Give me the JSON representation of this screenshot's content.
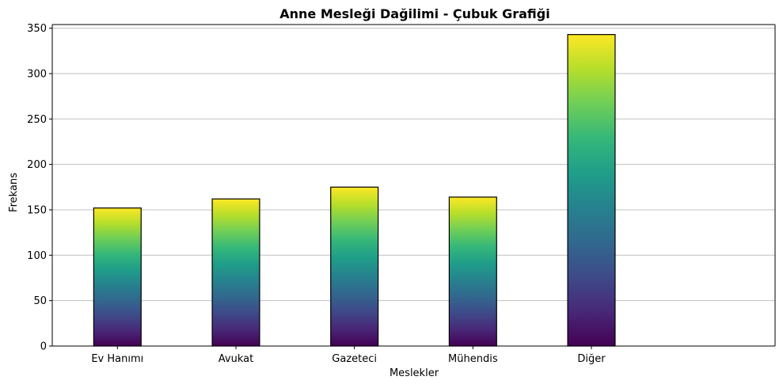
{
  "chart_data": {
    "type": "bar",
    "title": "Anne Mesleği Dağilimi - Çubuk Grafiği",
    "xlabel": "Meslekler",
    "ylabel": "Frekans",
    "categories": [
      "Ev Hanımı",
      "Avukat",
      "Gazeteci",
      "Mühendis",
      "Diğer"
    ],
    "values": [
      152,
      162,
      175,
      164,
      343
    ],
    "ylim": [
      0,
      354
    ],
    "yticks": [
      0,
      50,
      100,
      150,
      200,
      250,
      300,
      350
    ],
    "grid": "horizontal",
    "bar_gradient": [
      "#440154",
      "#482878",
      "#3e4a89",
      "#31688e",
      "#26828e",
      "#1f9e89",
      "#35b779",
      "#6ece58",
      "#b5de2b",
      "#fde725"
    ],
    "bar_edge_color": "#000000"
  }
}
